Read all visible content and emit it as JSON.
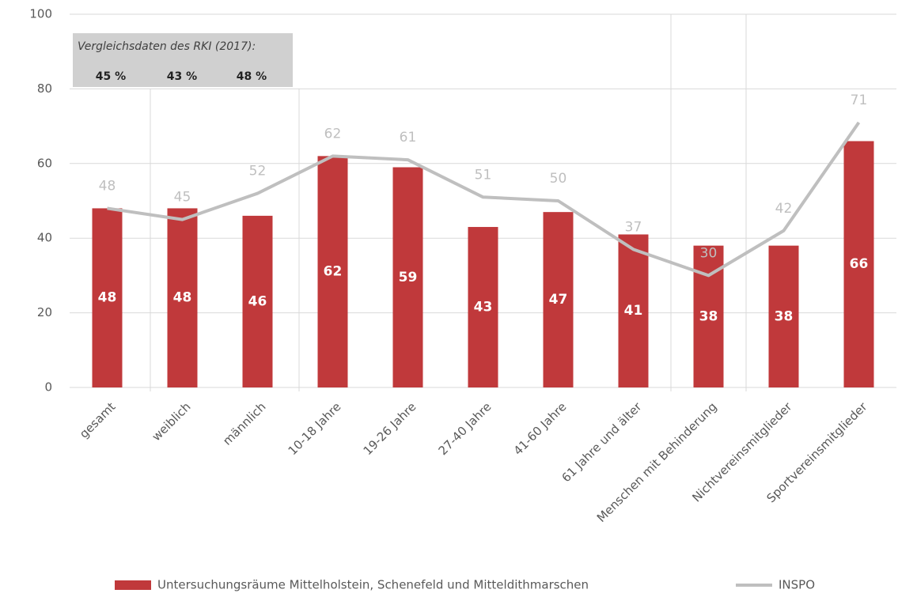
{
  "chart_data": {
    "type": "bar_line",
    "categories": [
      "gesamt",
      "weiblich",
      "männlich",
      "10-18 Jahre",
      "19-26 Jahre",
      "27-40 Jahre",
      "41-60 Jahre",
      "61 Jahre und älter",
      "Menschen mit Behinderung",
      "Nichtvereinsmitglieder",
      "Sportvereinsmitglieder"
    ],
    "series": [
      {
        "name": "Untersuchungsräume Mittelholstein, Schenefeld und Mitteldithmarschen",
        "type": "bar",
        "color": "#c0393b",
        "values": [
          48,
          48,
          46,
          62,
          59,
          43,
          47,
          41,
          38,
          38,
          66
        ]
      },
      {
        "name": "INSPO",
        "type": "line",
        "color": "#bfbfbf",
        "values": [
          48,
          45,
          52,
          62,
          61,
          51,
          50,
          37,
          30,
          42,
          71
        ]
      }
    ],
    "ylim": [
      0,
      100
    ],
    "yticks": [
      0,
      20,
      40,
      60,
      80,
      100
    ],
    "grid": true,
    "legend": "bottom",
    "annotation": {
      "text": "Vergleichsdaten des RKI (2017):",
      "items": [
        "45 %",
        "43 %",
        "48 %"
      ]
    }
  }
}
